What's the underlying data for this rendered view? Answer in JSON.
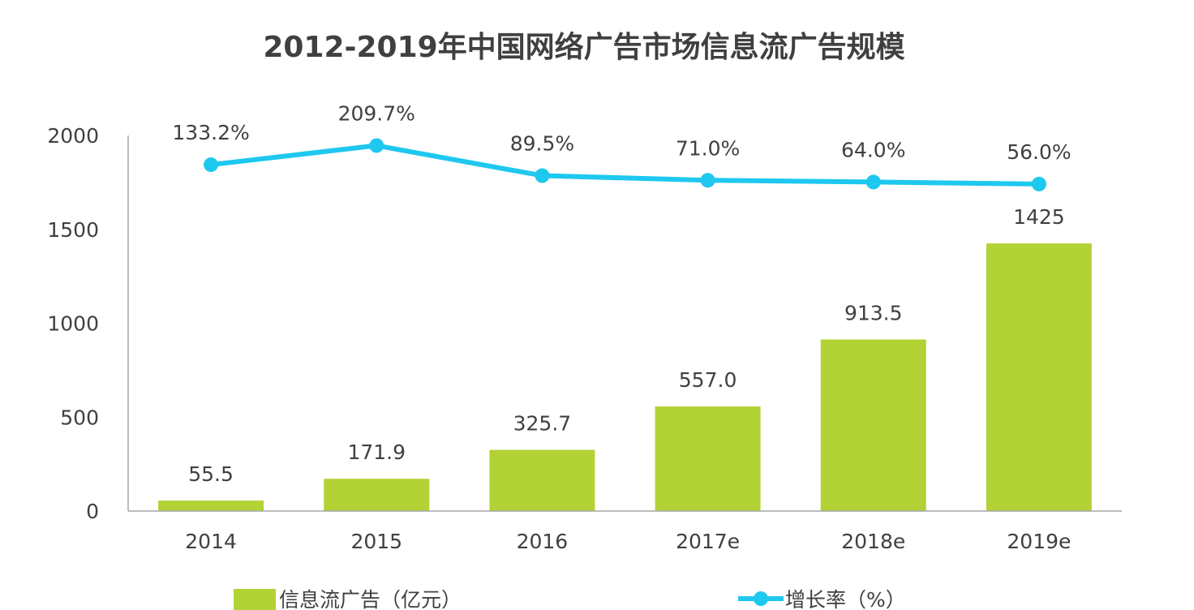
{
  "chart_data": {
    "type": "bar+line",
    "title": "2012-2019年中国网络广告市场信息流广告规模",
    "categories": [
      "2014",
      "2015",
      "2016",
      "2017e",
      "2018e",
      "2019e"
    ],
    "series": [
      {
        "name": "信息流广告（亿元）",
        "type": "bar",
        "axis": "left",
        "color": "#b2d235",
        "values": [
          55.5,
          171.9,
          325.7,
          557.0,
          913.5,
          1425
        ],
        "labels": [
          "55.5",
          "171.9",
          "325.7",
          "557.0",
          "913.5",
          "1425"
        ]
      },
      {
        "name": "增长率（%）",
        "type": "line",
        "axis": "right-hidden",
        "color": "#1ec8ef",
        "values": [
          133.2,
          209.7,
          89.5,
          71.0,
          64.0,
          56.0
        ],
        "labels": [
          "133.2%",
          "209.7%",
          "89.5%",
          "71.0%",
          "64.0%",
          "56.0%"
        ]
      }
    ],
    "ylim": [
      0,
      2000
    ],
    "yticks": [
      "0",
      "500",
      "1000",
      "1500",
      "2000"
    ],
    "y2lim": [
      -1250,
      250
    ],
    "grid": false,
    "legend": "bottom"
  }
}
